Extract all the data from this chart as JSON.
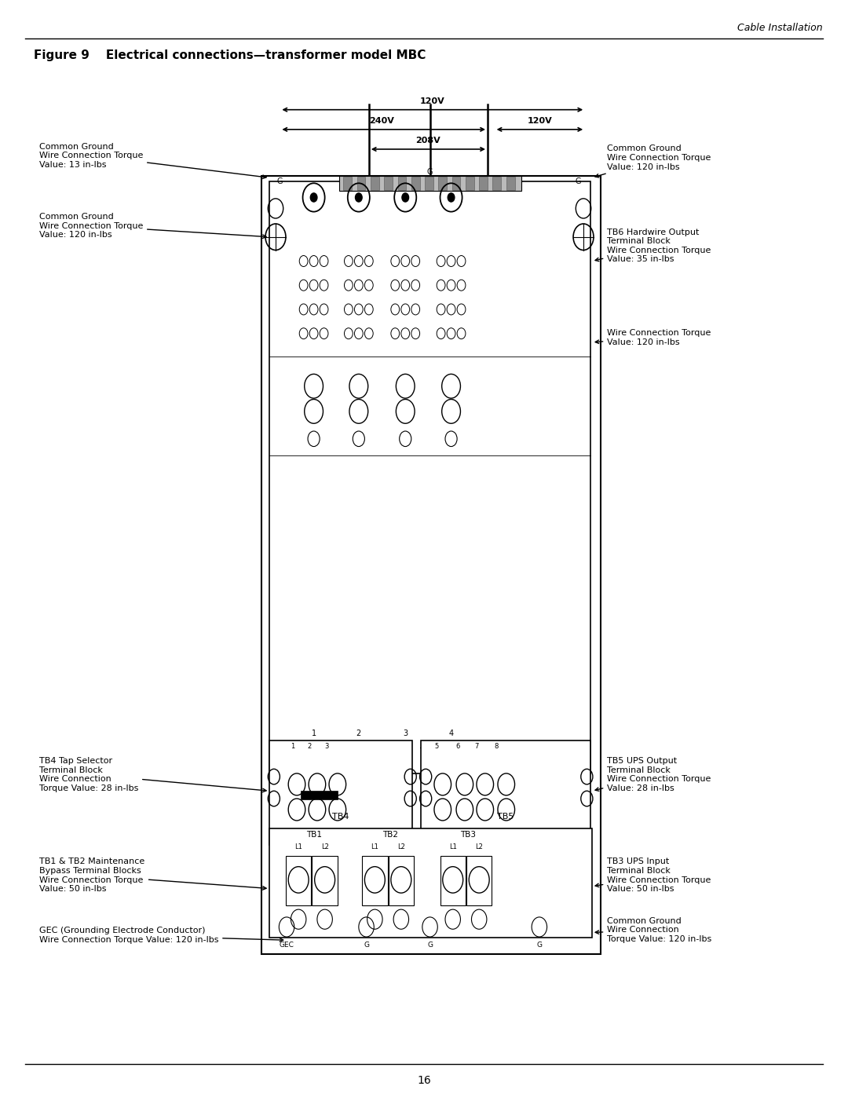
{
  "page_title": "Cable Installation",
  "figure_title": "Figure 9    Electrical connections—transformer model MBC",
  "page_number": "16",
  "background_color": "#ffffff",
  "text_color": "#000000"
}
